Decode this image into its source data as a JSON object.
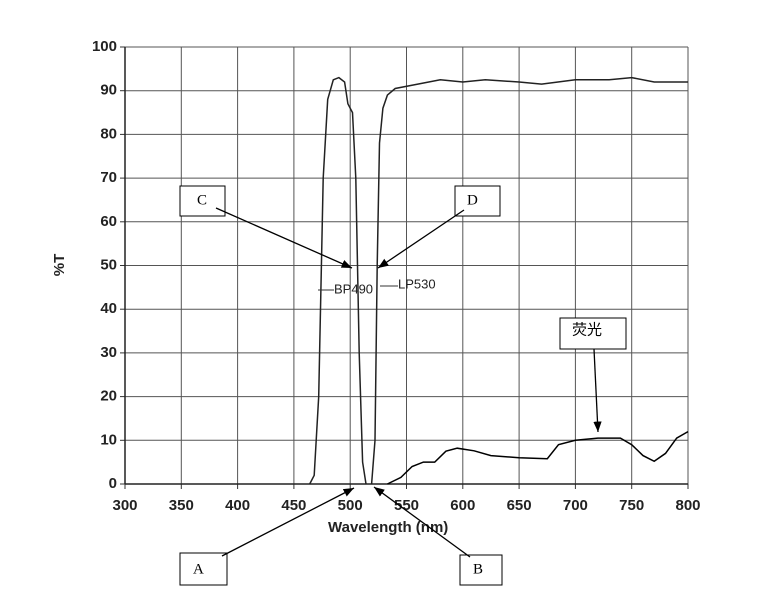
{
  "chart_data": {
    "type": "line",
    "xlabel": "Wavelength (nm)",
    "ylabel": "%T",
    "xlim": [
      300,
      800
    ],
    "ylim": [
      0,
      100
    ],
    "xticks": [
      300,
      350,
      400,
      450,
      500,
      550,
      600,
      650,
      700,
      750,
      800
    ],
    "yticks": [
      0,
      10,
      20,
      30,
      40,
      50,
      60,
      70,
      80,
      90,
      100
    ],
    "grid": true,
    "series": [
      {
        "name": "BP490",
        "color": "#222222",
        "x": [
          464,
          468,
          472,
          476,
          480,
          485,
          490,
          495,
          498,
          502,
          505,
          508,
          511,
          514
        ],
        "values": [
          0,
          2,
          20,
          70,
          88,
          92.5,
          93,
          92,
          87,
          85,
          70,
          30,
          5,
          0
        ]
      },
      {
        "name": "LP530",
        "color": "#222222",
        "x": [
          519,
          522,
          524,
          526,
          529,
          533,
          540,
          560,
          580,
          600,
          620,
          650,
          670,
          700,
          730,
          750,
          770,
          800
        ],
        "values": [
          0,
          10,
          50,
          78,
          86,
          89,
          90.5,
          91.5,
          92.5,
          92,
          92.5,
          92,
          91.5,
          92.5,
          92.5,
          93,
          92,
          92
        ]
      },
      {
        "name": "荧光",
        "color": "#000000",
        "x": [
          533,
          545,
          555,
          565,
          575,
          585,
          595,
          610,
          625,
          650,
          675,
          685,
          700,
          720,
          740,
          750,
          760,
          770,
          780,
          790,
          800
        ],
        "values": [
          0,
          1.5,
          4,
          5,
          5,
          7.5,
          8.2,
          7.6,
          6.5,
          6,
          5.8,
          9,
          10,
          10.5,
          10.5,
          9,
          6.5,
          5.2,
          7,
          10.5,
          12
        ]
      }
    ],
    "annotations": [
      "A",
      "B",
      "C",
      "D"
    ]
  }
}
